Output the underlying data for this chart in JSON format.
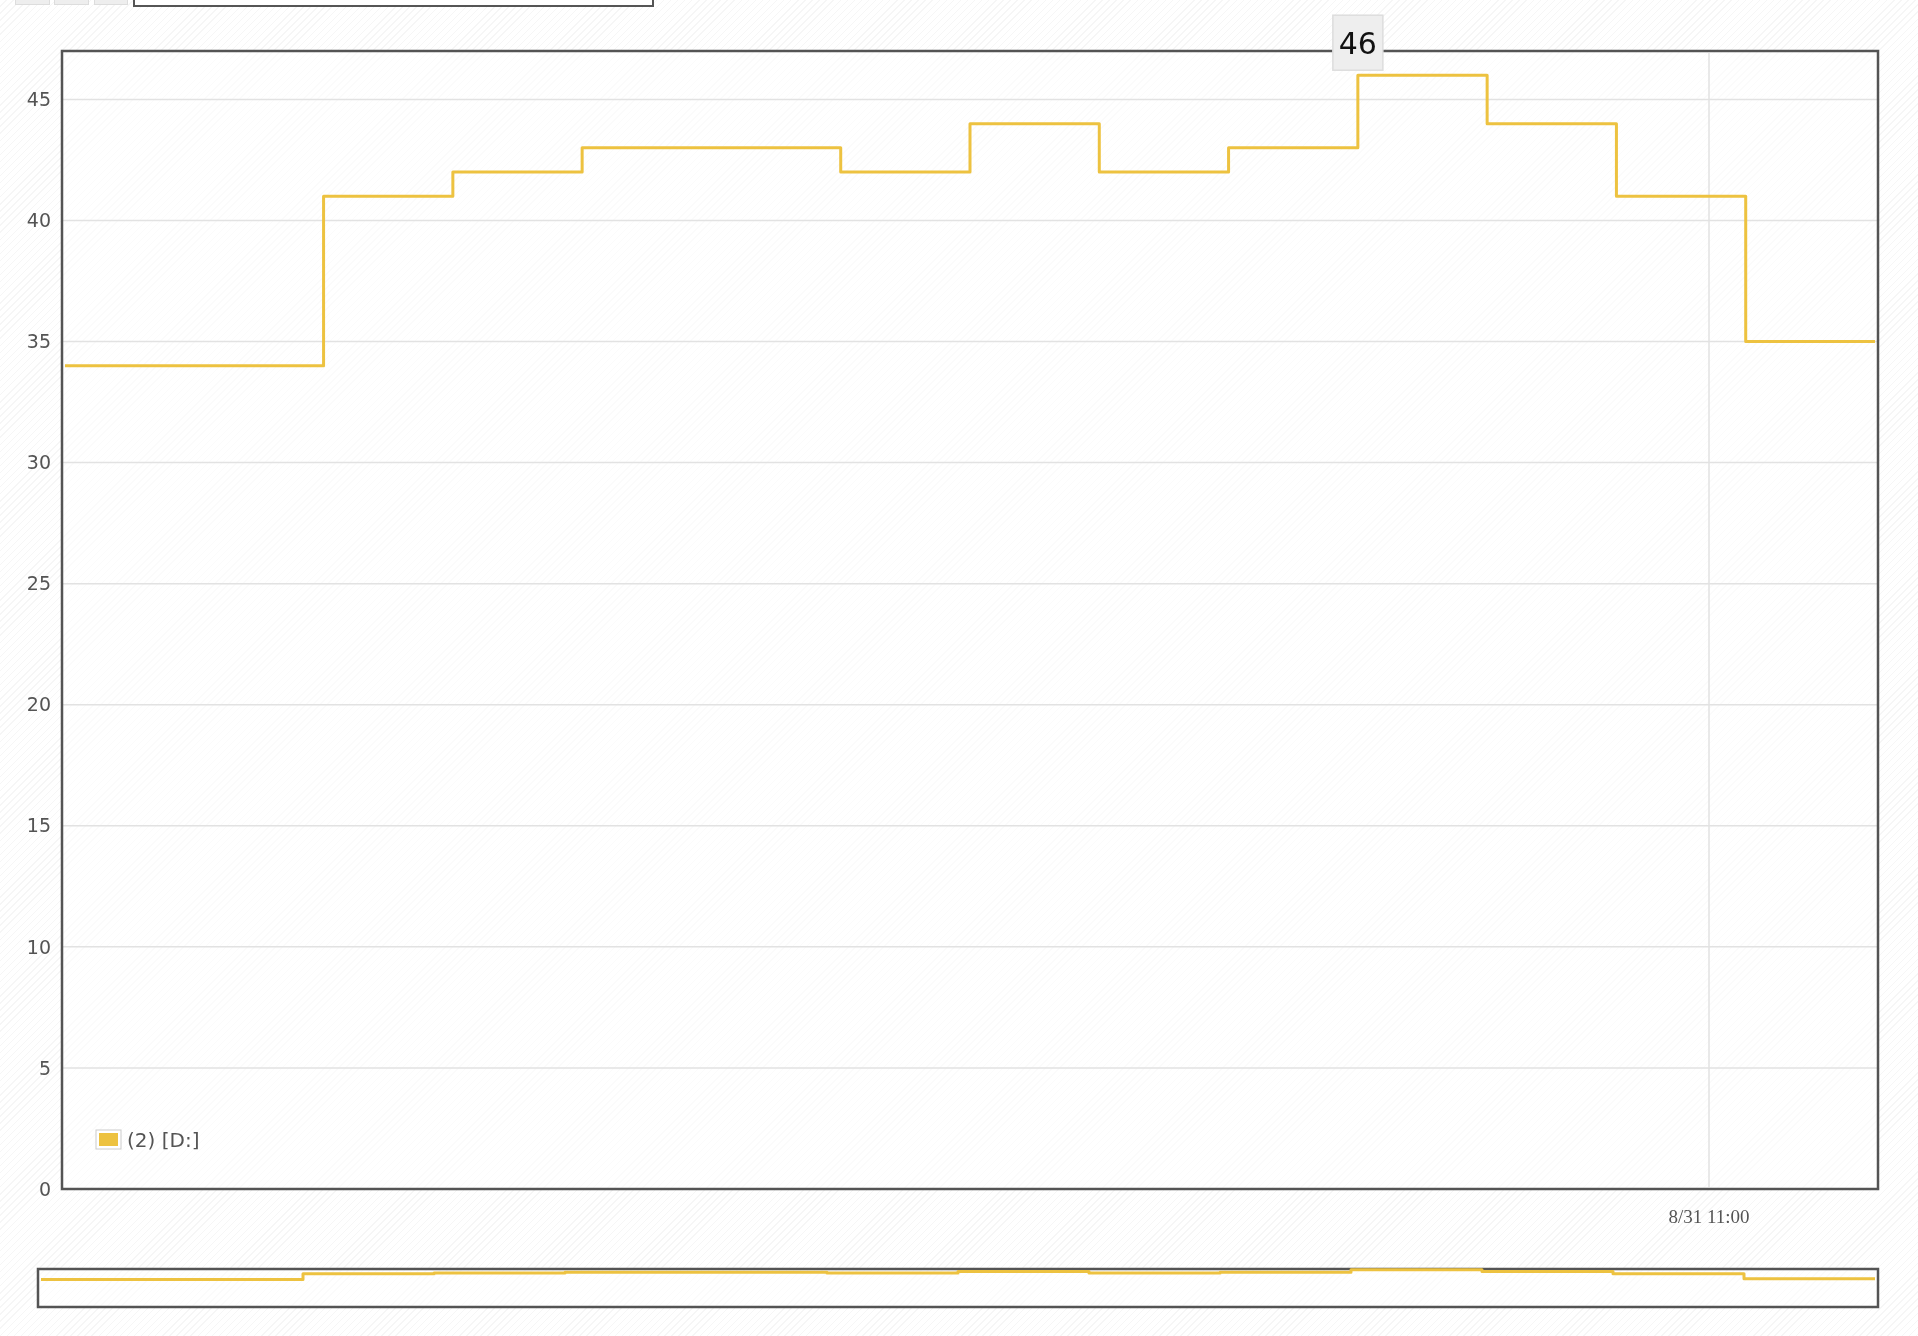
{
  "chart_data": {
    "type": "step",
    "categories": [
      null,
      null,
      null,
      null,
      null,
      null,
      null,
      null,
      null,
      null,
      null,
      null,
      null,
      null,
      null
    ],
    "series": [
      {
        "name": "(2) [D:]",
        "color": "#edc240",
        "values": [
          34,
          34,
          41,
          42,
          43,
          43,
          42,
          44,
          42,
          43,
          46,
          44,
          41,
          35,
          35
        ],
        "value_labels": [
          null,
          null,
          null,
          null,
          null,
          null,
          null,
          null,
          null,
          null,
          "46",
          null,
          null,
          null,
          null
        ]
      }
    ],
    "ylim": [
      0,
      47
    ],
    "yticks": [
      0,
      5,
      10,
      15,
      20,
      25,
      30,
      35,
      40,
      45
    ],
    "grid": "y",
    "legend": "bottom left",
    "annotations": [
      "8/31 11:00"
    ]
  }
}
